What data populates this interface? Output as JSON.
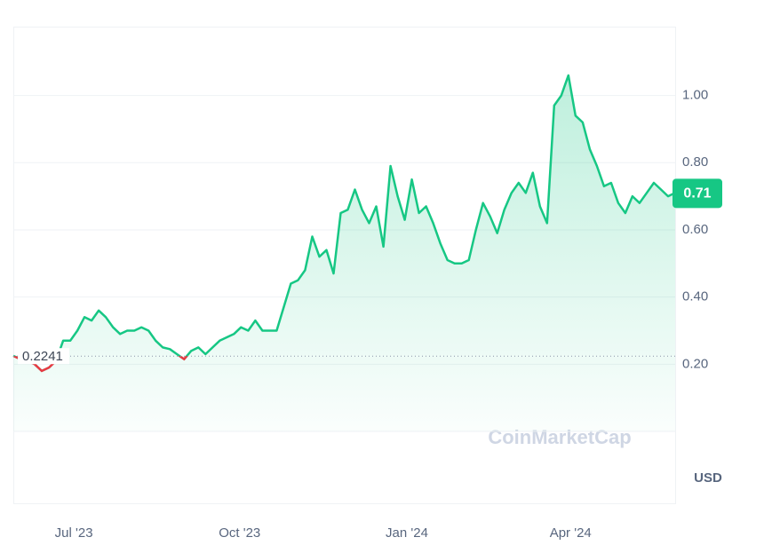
{
  "chart_data": {
    "type": "line",
    "watermark": "CoinMarketCap",
    "currency": "USD",
    "color": "#16c784",
    "below_color": "#ea3943",
    "baseline": 0.2241,
    "grid": true,
    "xlim": [
      0,
      93
    ],
    "xticks": [
      {
        "value": 8.5,
        "label": "Jul '23"
      },
      {
        "value": 31.8,
        "label": "Oct '23"
      },
      {
        "value": 55.3,
        "label": "Jan '24"
      },
      {
        "value": 78.3,
        "label": "Apr '24"
      }
    ],
    "ylim": [
      0,
      1.205
    ],
    "yticks": [
      {
        "value": 0.2,
        "label": "0.20"
      },
      {
        "value": 0.4,
        "label": "0.40"
      },
      {
        "value": 0.6,
        "label": "0.60"
      },
      {
        "value": 0.8,
        "label": "0.80"
      },
      {
        "value": 1,
        "label": "1.00"
      }
    ],
    "values": [
      0.225,
      0.215,
      0.21,
      0.2,
      0.18,
      0.19,
      0.21,
      0.27,
      0.27,
      0.3,
      0.34,
      0.33,
      0.36,
      0.34,
      0.31,
      0.29,
      0.3,
      0.3,
      0.31,
      0.3,
      0.27,
      0.25,
      0.245,
      0.23,
      0.215,
      0.24,
      0.25,
      0.23,
      0.25,
      0.27,
      0.28,
      0.29,
      0.31,
      0.3,
      0.33,
      0.3,
      0.3,
      0.3,
      0.37,
      0.44,
      0.45,
      0.48,
      0.58,
      0.52,
      0.54,
      0.47,
      0.65,
      0.66,
      0.72,
      0.66,
      0.62,
      0.67,
      0.55,
      0.79,
      0.7,
      0.63,
      0.75,
      0.65,
      0.67,
      0.62,
      0.56,
      0.51,
      0.5,
      0.5,
      0.51,
      0.6,
      0.68,
      0.64,
      0.59,
      0.66,
      0.71,
      0.74,
      0.71,
      0.77,
      0.67,
      0.62,
      0.97,
      1.0,
      1.06,
      0.94,
      0.92,
      0.84,
      0.79,
      0.73,
      0.74,
      0.68,
      0.65,
      0.7,
      0.68,
      0.71,
      0.74,
      0.72,
      0.7,
      0.71
    ]
  }
}
